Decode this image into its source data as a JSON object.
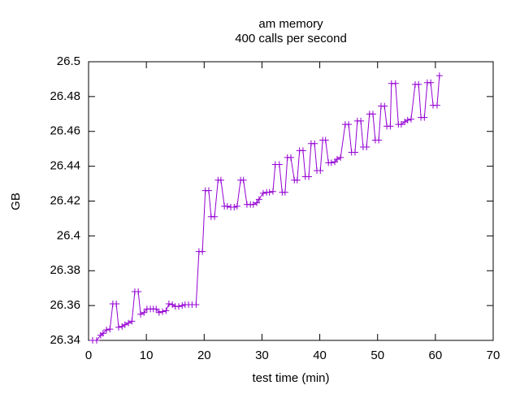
{
  "chart_data": {
    "type": "line",
    "title": "am memory",
    "subtitle": "400 calls per second",
    "x_label": "test time (min)",
    "y_label": "GB",
    "xlim": [
      0,
      70
    ],
    "xticks": [
      0,
      10,
      20,
      30,
      40,
      50,
      60,
      70
    ],
    "ylim": [
      26.34,
      26.5
    ],
    "yticks": [
      26.34,
      26.36,
      26.38,
      26.4,
      26.42,
      26.44,
      26.46,
      26.48,
      26.5
    ],
    "grid": false,
    "series": [
      {
        "color": "#9400d3",
        "x": [
          0.7,
          1.4,
          2.1,
          2.5,
          3.1,
          3.7,
          4.2,
          4.8,
          5.2,
          5.8,
          6.3,
          6.9,
          7.5,
          8.0,
          8.6,
          9.0,
          9.6,
          10.1,
          10.7,
          11.2,
          11.7,
          12.2,
          12.8,
          13.4,
          13.9,
          14.5,
          15.0,
          15.6,
          16.2,
          16.7,
          17.3,
          17.9,
          18.6,
          19.1,
          19.7,
          20.2,
          20.8,
          21.2,
          21.8,
          22.4,
          22.9,
          23.5,
          24.0,
          24.6,
          25.2,
          25.7,
          26.3,
          26.8,
          27.4,
          28.0,
          28.5,
          29.1,
          29.5,
          30.2,
          30.8,
          31.3,
          31.9,
          32.3,
          33.0,
          33.5,
          34.0,
          34.4,
          35.0,
          35.6,
          36.1,
          36.5,
          37.1,
          37.5,
          38.1,
          38.5,
          39.1,
          39.5,
          40.1,
          40.5,
          41.0,
          41.5,
          42.0,
          42.6,
          43.0,
          43.6,
          44.4,
          45.0,
          45.5,
          46.1,
          46.5,
          47.1,
          47.5,
          48.1,
          48.6,
          49.2,
          49.6,
          50.2,
          50.6,
          51.2,
          51.6,
          52.2,
          52.4,
          53.1,
          53.6,
          54.1,
          54.7,
          55.2,
          55.8,
          56.5,
          57.1,
          57.5,
          58.1,
          58.6,
          59.2,
          59.6,
          60.3,
          60.7
        ],
        "values": [
          26.34,
          26.34,
          26.343,
          26.344,
          26.346,
          26.3465,
          26.361,
          26.361,
          26.3475,
          26.348,
          26.349,
          26.35,
          26.351,
          26.368,
          26.368,
          26.355,
          26.356,
          26.358,
          26.358,
          26.358,
          26.358,
          26.356,
          26.3565,
          26.357,
          26.361,
          26.3605,
          26.3595,
          26.3595,
          26.36,
          26.3605,
          26.3605,
          26.3605,
          26.3605,
          26.391,
          26.391,
          26.426,
          26.426,
          26.411,
          26.411,
          26.432,
          26.432,
          26.417,
          26.417,
          26.4165,
          26.4165,
          26.417,
          26.432,
          26.432,
          26.418,
          26.418,
          26.418,
          26.419,
          26.421,
          26.4245,
          26.425,
          26.425,
          26.4255,
          26.441,
          26.441,
          26.425,
          26.425,
          26.445,
          26.445,
          26.432,
          26.432,
          26.449,
          26.449,
          26.434,
          26.434,
          26.453,
          26.453,
          26.4375,
          26.4375,
          26.455,
          26.455,
          26.442,
          26.442,
          26.4425,
          26.444,
          26.445,
          26.464,
          26.464,
          26.448,
          26.448,
          26.466,
          26.466,
          26.451,
          26.451,
          26.47,
          26.47,
          26.455,
          26.455,
          26.4745,
          26.4745,
          26.463,
          26.463,
          26.4875,
          26.4875,
          26.464,
          26.464,
          26.4655,
          26.4665,
          26.467,
          26.487,
          26.487,
          26.468,
          26.468,
          26.488,
          26.488,
          26.475,
          26.475,
          26.492
        ]
      }
    ]
  }
}
